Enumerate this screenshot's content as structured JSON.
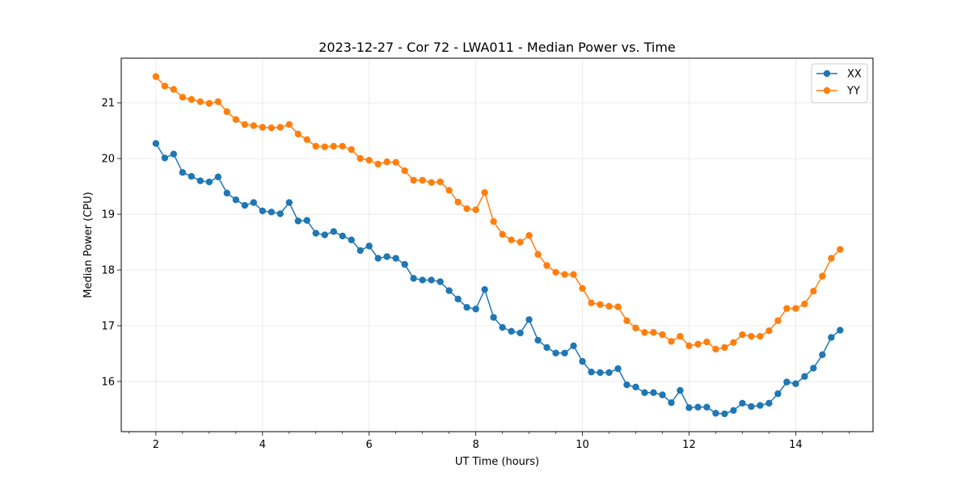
{
  "chart_data": {
    "type": "line",
    "title": "2023-12-27 - Cor 72 - LWA011 - Median Power vs. Time",
    "xlabel": "UT Time (hours)",
    "ylabel": "Median Power (CPU)",
    "xlim": [
      1.35,
      15.45
    ],
    "ylim": [
      15.1,
      21.8
    ],
    "xticks": [
      2,
      4,
      6,
      8,
      10,
      12,
      14
    ],
    "yticks": [
      16,
      17,
      18,
      19,
      20,
      21
    ],
    "grid": true,
    "legend_position": "top-right",
    "x": [
      2.0,
      2.167,
      2.333,
      2.5,
      2.667,
      2.833,
      3.0,
      3.167,
      3.333,
      3.5,
      3.667,
      3.833,
      4.0,
      4.167,
      4.333,
      4.5,
      4.667,
      4.833,
      5.0,
      5.167,
      5.333,
      5.5,
      5.667,
      5.833,
      6.0,
      6.167,
      6.333,
      6.5,
      6.667,
      6.833,
      7.0,
      7.167,
      7.333,
      7.5,
      7.667,
      7.833,
      8.0,
      8.167,
      8.333,
      8.5,
      8.667,
      8.833,
      9.0,
      9.167,
      9.333,
      9.5,
      9.667,
      9.833,
      10.0,
      10.167,
      10.333,
      10.5,
      10.667,
      10.833,
      11.0,
      11.167,
      11.333,
      11.5,
      11.667,
      11.833,
      12.0,
      12.167,
      12.333,
      12.5,
      12.667,
      12.833,
      13.0,
      13.167,
      13.333,
      13.5,
      13.667,
      13.833,
      14.0,
      14.167,
      14.333,
      14.5,
      14.667,
      14.833
    ],
    "series": [
      {
        "name": "XX",
        "color": "#1f77b4",
        "values": [
          20.27,
          20.01,
          20.08,
          19.75,
          19.68,
          19.6,
          19.58,
          19.67,
          19.38,
          19.26,
          19.16,
          19.21,
          19.06,
          19.04,
          19.01,
          19.21,
          18.88,
          18.89,
          18.66,
          18.63,
          18.69,
          18.61,
          18.54,
          18.35,
          18.43,
          18.21,
          18.24,
          18.21,
          18.1,
          17.85,
          17.82,
          17.82,
          17.79,
          17.63,
          17.48,
          17.33,
          17.3,
          17.65,
          17.15,
          16.97,
          16.9,
          16.87,
          17.11,
          16.74,
          16.61,
          16.51,
          16.51,
          16.64,
          16.36,
          16.17,
          16.16,
          16.16,
          16.23,
          15.94,
          15.9,
          15.8,
          15.8,
          15.76,
          15.62,
          15.84,
          15.53,
          15.54,
          15.54,
          15.43,
          15.42,
          15.48,
          15.61,
          15.55,
          15.57,
          15.61,
          15.78,
          15.99,
          15.96,
          16.09,
          16.24,
          16.48,
          16.79,
          16.92
        ]
      },
      {
        "name": "YY",
        "color": "#ff7f0e",
        "values": [
          21.47,
          21.3,
          21.24,
          21.1,
          21.06,
          21.02,
          20.99,
          21.02,
          20.84,
          20.7,
          20.61,
          20.59,
          20.56,
          20.55,
          20.56,
          20.61,
          20.44,
          20.34,
          20.22,
          20.21,
          20.22,
          20.22,
          20.16,
          20.0,
          19.97,
          19.9,
          19.94,
          19.93,
          19.78,
          19.61,
          19.61,
          19.57,
          19.58,
          19.43,
          19.22,
          19.1,
          19.08,
          19.39,
          18.87,
          18.64,
          18.54,
          18.5,
          18.62,
          18.28,
          18.08,
          17.96,
          17.92,
          17.92,
          17.67,
          17.41,
          17.38,
          17.35,
          17.34,
          17.09,
          16.96,
          16.88,
          16.88,
          16.84,
          16.72,
          16.81,
          16.64,
          16.67,
          16.71,
          16.58,
          16.61,
          16.7,
          16.84,
          16.81,
          16.81,
          16.91,
          17.09,
          17.31,
          17.31,
          17.39,
          17.62,
          17.89,
          18.21,
          18.37
        ]
      }
    ]
  }
}
